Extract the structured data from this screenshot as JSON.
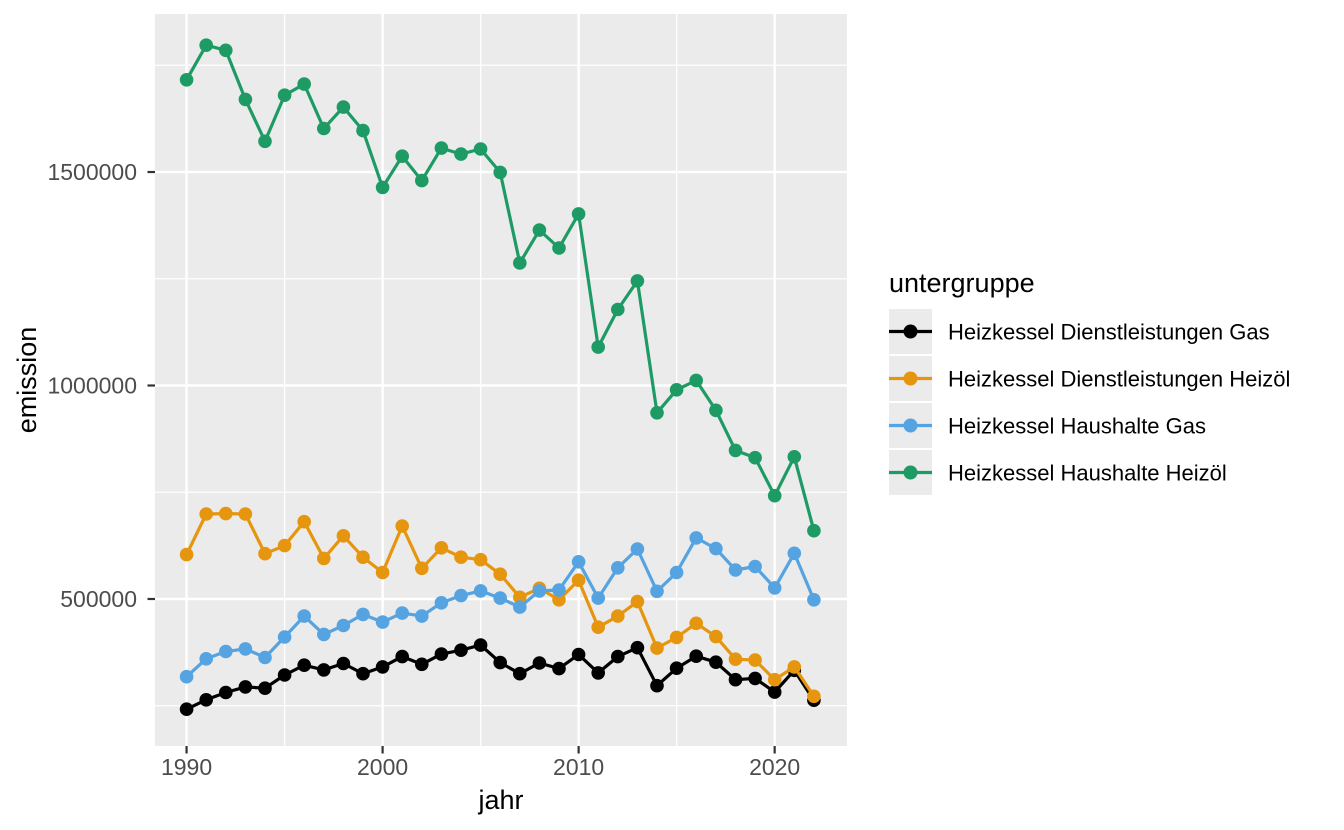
{
  "chart_data": {
    "type": "line",
    "title": "",
    "xlabel": "jahr",
    "ylabel": "emission",
    "legend_title": "untergruppe",
    "legend_position": "right",
    "grid": true,
    "panel_background": "#EBEBEB",
    "gridline_color": "#FFFFFF",
    "tick_text_color": "#4D4D4D",
    "tick_mark_color": "#333333",
    "x_axis": {
      "ticks": [
        1990,
        2000,
        2010,
        2020
      ],
      "tick_labels": [
        "1990",
        "2000",
        "2010",
        "2020"
      ],
      "minor_ticks": [
        1995,
        2005,
        2015
      ],
      "range": [
        1988.39,
        2023.69
      ]
    },
    "y_axis": {
      "ticks": [
        500000,
        1000000,
        1500000
      ],
      "tick_labels": [
        "500000",
        "1000000",
        "1500000"
      ],
      "minor_ticks": [
        250000,
        750000,
        1250000,
        1750000
      ],
      "range": [
        155700,
        1870100
      ]
    },
    "x": [
      1990,
      1991,
      1992,
      1993,
      1994,
      1995,
      1996,
      1997,
      1998,
      1999,
      2000,
      2001,
      2002,
      2003,
      2004,
      2005,
      2006,
      2007,
      2008,
      2009,
      2010,
      2011,
      2012,
      2013,
      2014,
      2015,
      2016,
      2017,
      2018,
      2019,
      2020,
      2021,
      2022
    ],
    "series": [
      {
        "name": "Heizkessel Dienstleistungen Gas",
        "color": "#000000",
        "values": [
          242000,
          264000,
          281000,
          294000,
          291000,
          322000,
          345000,
          334000,
          349000,
          325000,
          341000,
          365000,
          347000,
          371000,
          380000,
          392000,
          351000,
          325000,
          350000,
          337000,
          370000,
          327000,
          365000,
          386000,
          297000,
          338000,
          366000,
          352000,
          311000,
          314000,
          282000,
          333000,
          263000
        ]
      },
      {
        "name": "Heizkessel Dienstleistungen Heizöl",
        "color": "#E6950E",
        "values": [
          604000,
          699000,
          700000,
          699000,
          606000,
          625000,
          681000,
          595000,
          648000,
          598000,
          562000,
          671000,
          572000,
          620000,
          598000,
          592000,
          558000,
          504000,
          525000,
          498000,
          544000,
          434000,
          460000,
          494000,
          385000,
          410000,
          443000,
          412000,
          359000,
          357000,
          311000,
          341000,
          272000
        ]
      },
      {
        "name": "Heizkessel Haushalte Gas",
        "color": "#55A3E1",
        "values": [
          318000,
          360000,
          377000,
          383000,
          363000,
          411000,
          460000,
          417000,
          438000,
          464000,
          446000,
          467000,
          460000,
          491000,
          508000,
          519000,
          502000,
          481000,
          519000,
          521000,
          587000,
          502000,
          573000,
          617000,
          518000,
          562000,
          643000,
          618000,
          568000,
          576000,
          526000,
          607000,
          498000
        ]
      },
      {
        "name": "Heizkessel Haushalte Heizöl",
        "color": "#1E9B65",
        "values": [
          1716000,
          1797000,
          1785000,
          1670000,
          1572000,
          1680000,
          1706000,
          1602000,
          1652000,
          1597000,
          1464000,
          1537000,
          1480000,
          1556000,
          1542000,
          1554000,
          1499000,
          1287000,
          1364000,
          1322000,
          1402000,
          1090000,
          1178000,
          1245000,
          936000,
          990000,
          1012000,
          942000,
          848000,
          831000,
          742000,
          833000,
          660000
        ]
      }
    ]
  }
}
